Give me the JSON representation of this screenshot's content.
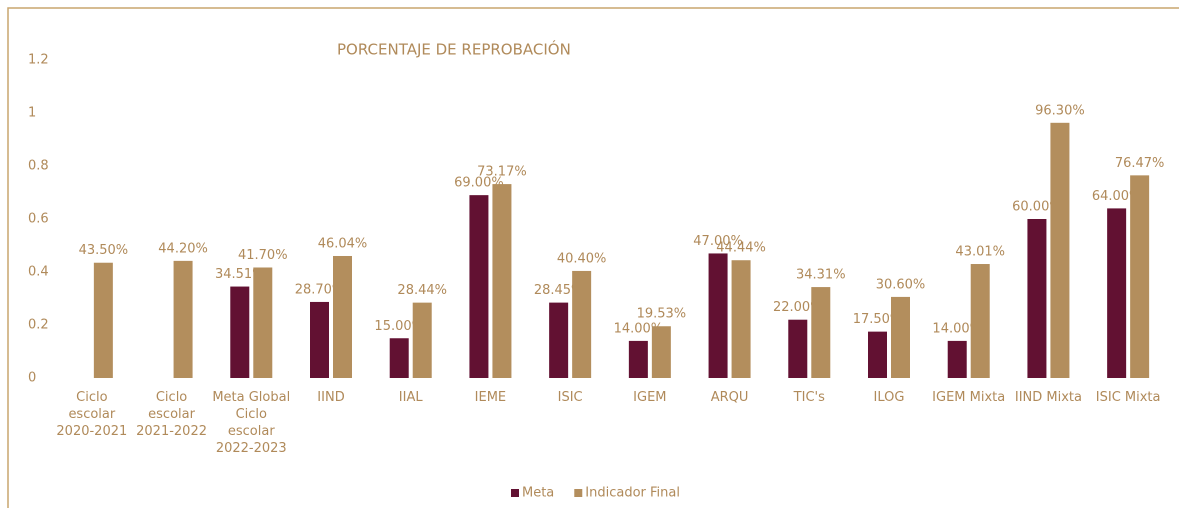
{
  "chart_data": {
    "type": "bar",
    "title": "PORCENTAJE DE REPROBACIÓN",
    "categories": [
      "Ciclo escolar 2020-2021",
      "Ciclo escolar 2021-2022",
      "Meta Global Ciclo escolar 2022-2023",
      "IIND",
      "IIAL",
      "IEME",
      "ISIC",
      "IGEM",
      "ARQU",
      "TIC's",
      "ILOG",
      "IGEM Mixta",
      "IIND Mixta",
      "ISIC Mixta"
    ],
    "series": [
      {
        "name": "Meta",
        "color": "#621132",
        "values": [
          null,
          null,
          0.3451,
          0.287,
          0.15,
          0.69,
          0.2845,
          0.14,
          0.47,
          0.22,
          0.175,
          0.14,
          0.6,
          0.64
        ],
        "value_labels": [
          null,
          null,
          "34.51%",
          "28.70%",
          "15.00%",
          "69.00%",
          "28.45%",
          "14.00%",
          "47.00%",
          "22.00%",
          "17.50%",
          "14.00%",
          "60.00%",
          "64.00%"
        ]
      },
      {
        "name": "Indicador Final",
        "color": "#b38e5d",
        "values": [
          0.435,
          0.442,
          0.417,
          0.4604,
          0.2844,
          0.7317,
          0.404,
          0.1953,
          0.4444,
          0.3431,
          0.306,
          0.4301,
          0.963,
          0.7647
        ],
        "value_labels": [
          "43.50%",
          "44.20%",
          "41.70%",
          "46.04%",
          "28.44%",
          "73.17%",
          "40.40%",
          "19.53%",
          "44.44%",
          "34.31%",
          "30.60%",
          "43.01%",
          "96.30%",
          "76.47%"
        ]
      }
    ],
    "ylim": [
      0,
      1.2
    ],
    "yticks": [
      0,
      0.2,
      0.4,
      0.6,
      0.8,
      1,
      1.2
    ],
    "grid": false,
    "legend": "bottom"
  }
}
